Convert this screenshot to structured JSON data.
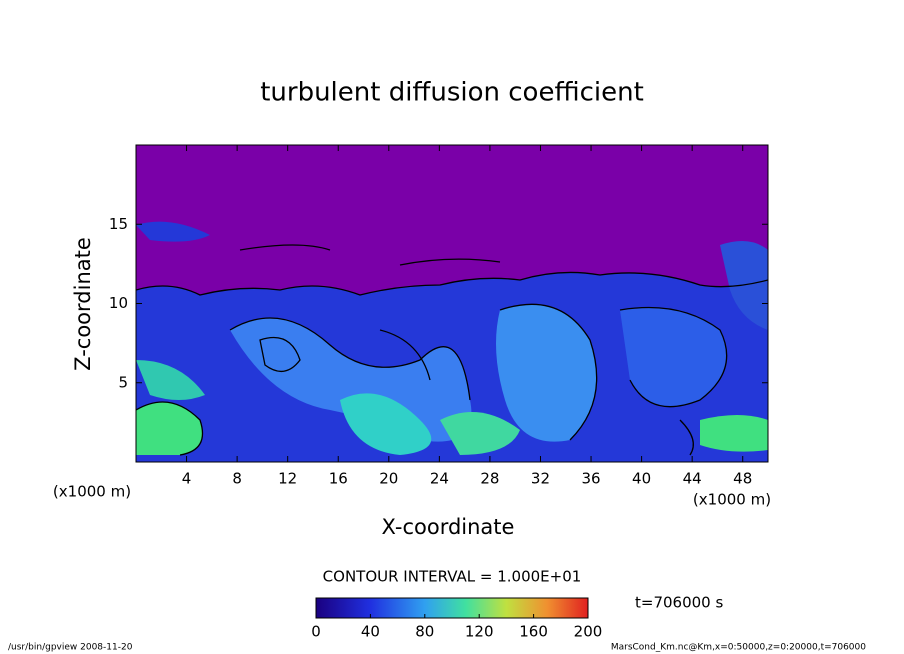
{
  "chart_data": {
    "type": "contour",
    "title": "turbulent diffusion coefficient",
    "xlabel": "X-coordinate",
    "ylabel": "Z-coordinate",
    "x_unit": "(x1000 m)",
    "y_unit": "(x1000 m)",
    "xlim": [
      0,
      50
    ],
    "ylim": [
      0,
      20
    ],
    "xticks": [
      4,
      8,
      12,
      16,
      20,
      24,
      28,
      32,
      36,
      40,
      44,
      48
    ],
    "yticks": [
      5,
      10,
      15
    ],
    "contour_interval": "CONTOUR INTERVAL = 1.000E+01",
    "colorbar_lim": [
      0,
      200
    ],
    "colorbar_ticks": [
      0,
      40,
      80,
      120,
      160,
      200
    ],
    "time_label": "t=706000 s",
    "footer_left": "/usr/bin/gpview   2008-11-20",
    "footer_right": "MarsCond_Km.nc@Km,x=0:50000,z=0:20000,t=706000"
  }
}
